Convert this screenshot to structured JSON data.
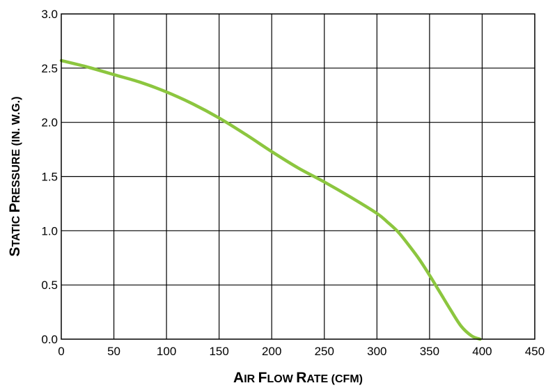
{
  "chart_data": {
    "type": "line",
    "xlabel": "Air Flow Rate (cfm)",
    "ylabel": "Static Pressure (in. w.g.)",
    "xlim": [
      0,
      450
    ],
    "ylim": [
      0,
      3.0
    ],
    "x_ticks": [
      "0",
      "50",
      "100",
      "150",
      "200",
      "250",
      "300",
      "350",
      "400",
      "450"
    ],
    "y_ticks": [
      "0.0",
      "0.5",
      "1.0",
      "1.5",
      "2.0",
      "2.5",
      "3.0"
    ],
    "grid": true,
    "legend": "none",
    "series": [
      {
        "color": "#8cc63f",
        "x": [
          0,
          25,
          50,
          75,
          100,
          125,
          150,
          175,
          200,
          225,
          250,
          275,
          300,
          310,
          320,
          330,
          340,
          350,
          360,
          370,
          380,
          390,
          398
        ],
        "y": [
          2.57,
          2.51,
          2.44,
          2.37,
          2.28,
          2.17,
          2.04,
          1.89,
          1.73,
          1.58,
          1.45,
          1.31,
          1.16,
          1.08,
          0.99,
          0.87,
          0.74,
          0.59,
          0.43,
          0.27,
          0.12,
          0.03,
          0.0
        ]
      }
    ]
  }
}
